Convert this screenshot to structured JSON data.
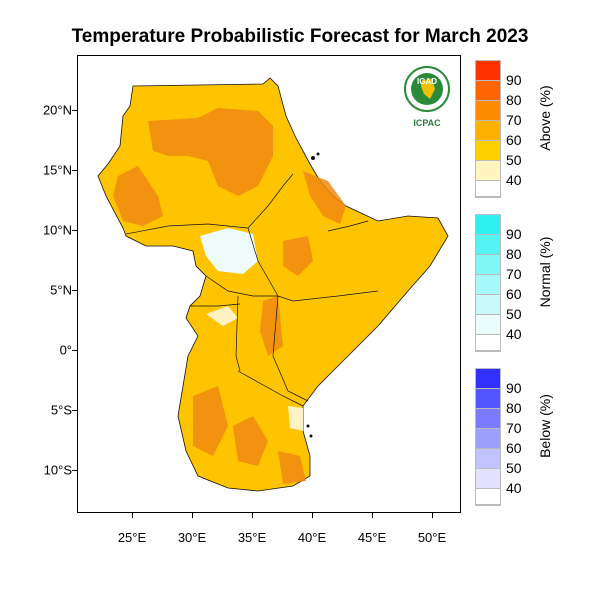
{
  "title": "Temperature Probabilistic Forecast for March 2023",
  "lat_ticks": [
    {
      "label": "20°N",
      "value": 20
    },
    {
      "label": "15°N",
      "value": 15
    },
    {
      "label": "10°N",
      "value": 10
    },
    {
      "label": "5°N",
      "value": 5
    },
    {
      "label": "0°",
      "value": 0
    },
    {
      "label": "5°S",
      "value": -5
    },
    {
      "label": "10°S",
      "value": -10
    }
  ],
  "lon_ticks": [
    {
      "label": "25°E",
      "value": 25
    },
    {
      "label": "30°E",
      "value": 30
    },
    {
      "label": "35°E",
      "value": 35
    },
    {
      "label": "40°E",
      "value": 40
    },
    {
      "label": "45°E",
      "value": 45
    },
    {
      "label": "50°E",
      "value": 50
    }
  ],
  "legend": {
    "above": {
      "title": "Above (%)",
      "levels": [
        "90",
        "80",
        "70",
        "60",
        "50",
        "40"
      ],
      "colors": [
        "#ff3300",
        "#ff6600",
        "#ff8c00",
        "#ffb000",
        "#ffd000",
        "#fff5c0"
      ]
    },
    "normal": {
      "title": "Normal (%)",
      "levels": [
        "90",
        "80",
        "70",
        "60",
        "50",
        "40"
      ],
      "colors": [
        "#2ef0f0",
        "#55f3f3",
        "#7ff6f6",
        "#a6f9f9",
        "#caf9f9",
        "#eafcfc"
      ]
    },
    "below": {
      "title": "Below (%)",
      "levels": [
        "90",
        "80",
        "70",
        "60",
        "50",
        "40"
      ],
      "colors": [
        "#3030ff",
        "#5555ff",
        "#7a7aff",
        "#9e9eff",
        "#c2c2ff",
        "#e2e2ff"
      ]
    }
  },
  "logo": {
    "top_text": "IGAD",
    "bottom_text": "ICPAC"
  }
}
